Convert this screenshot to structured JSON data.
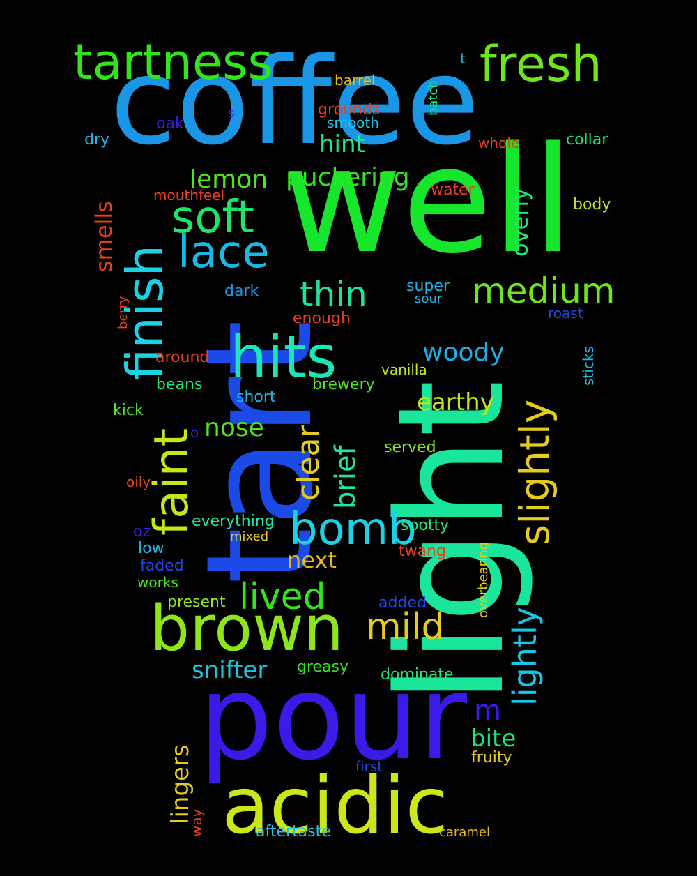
{
  "words": [
    {
      "text": "coffee",
      "color": "#1a96e6",
      "vertical": false
    },
    {
      "text": "well",
      "color": "#16e62c",
      "vertical": false
    },
    {
      "text": "light",
      "color": "#1ae69b",
      "vertical": true
    },
    {
      "text": "tart",
      "color": "#1c4ae6",
      "vertical": true
    },
    {
      "text": "pour",
      "color": "#3a1ae6",
      "vertical": false
    },
    {
      "text": "acidic",
      "color": "#cce61a",
      "vertical": false
    },
    {
      "text": "brown",
      "color": "#8ee61a",
      "vertical": false
    },
    {
      "text": "tartness",
      "color": "#2ee61a",
      "vertical": false
    },
    {
      "text": "fresh",
      "color": "#6ee61a",
      "vertical": false
    },
    {
      "text": "finish",
      "color": "#1ad2e6",
      "vertical": true
    },
    {
      "text": "faint",
      "color": "#c6e61a",
      "vertical": true
    },
    {
      "text": "hits",
      "color": "#1ae6b8",
      "vertical": false
    },
    {
      "text": "soft",
      "color": "#1ae668",
      "vertical": false
    },
    {
      "text": "lace",
      "color": "#1ab8e6",
      "vertical": false
    },
    {
      "text": "slightly",
      "color": "#e6cc1a",
      "vertical": true
    },
    {
      "text": "bomb",
      "color": "#1ad2e6",
      "vertical": false
    },
    {
      "text": "medium",
      "color": "#6ee61a",
      "vertical": false
    },
    {
      "text": "thin",
      "color": "#1ae69b",
      "vertical": false
    },
    {
      "text": "lightly",
      "color": "#1ac6e6",
      "vertical": true
    },
    {
      "text": "mild",
      "color": "#e6cc1a",
      "vertical": false
    },
    {
      "text": "lived",
      "color": "#2ee61a",
      "vertical": false
    },
    {
      "text": "woody",
      "color": "#1aaee6",
      "vertical": false
    },
    {
      "text": "earthy",
      "color": "#b8e61a",
      "vertical": false
    },
    {
      "text": "clear",
      "color": "#e6cc1a",
      "vertical": true
    },
    {
      "text": "brief",
      "color": "#1ae6a8",
      "vertical": true
    },
    {
      "text": "nose",
      "color": "#4ee61a",
      "vertical": false
    },
    {
      "text": "hint",
      "color": "#1ae68a",
      "vertical": false
    },
    {
      "text": "lemon",
      "color": "#4ee61a",
      "vertical": false
    },
    {
      "text": "puckering",
      "color": "#2ee61a",
      "vertical": false
    },
    {
      "text": "overly",
      "color": "#1ae67a",
      "vertical": true
    },
    {
      "text": "smells",
      "color": "#e6401a",
      "vertical": true
    },
    {
      "text": "snifter",
      "color": "#1ac6e6",
      "vertical": false
    },
    {
      "text": "lingers",
      "color": "#e6cc1a",
      "vertical": true
    },
    {
      "text": "bite",
      "color": "#1ae67a",
      "vertical": false
    },
    {
      "text": "m",
      "color": "#3a1ae6",
      "vertical": false
    },
    {
      "text": "next",
      "color": "#e6b81a",
      "vertical": false
    },
    {
      "text": "fruity",
      "color": "#e6cc1a",
      "vertical": false
    },
    {
      "text": "barrel",
      "color": "#e6b81a",
      "vertical": false
    },
    {
      "text": "grounds",
      "color": "#e6401a",
      "vertical": false
    },
    {
      "text": "smooth",
      "color": "#1ac6e6",
      "vertical": false
    },
    {
      "text": "batch",
      "color": "#1ae67a",
      "vertical": true
    },
    {
      "text": "t",
      "color": "#1ab8e6",
      "vertical": false
    },
    {
      "text": "s",
      "color": "#3a1ae6",
      "vertical": false
    },
    {
      "text": "oak",
      "color": "#3a1ae6",
      "vertical": false
    },
    {
      "text": "dry",
      "color": "#1ab8e6",
      "vertical": false
    },
    {
      "text": "whole",
      "color": "#e6401a",
      "vertical": false
    },
    {
      "text": "collar",
      "color": "#1ae67a",
      "vertical": false
    },
    {
      "text": "mouthfeel",
      "color": "#e6401a",
      "vertical": false
    },
    {
      "text": "water",
      "color": "#e6401a",
      "vertical": false
    },
    {
      "text": "body",
      "color": "#b8e61a",
      "vertical": false
    },
    {
      "text": "dark",
      "color": "#1a96e6",
      "vertical": false
    },
    {
      "text": "super",
      "color": "#1ab8e6",
      "vertical": false
    },
    {
      "text": "sour",
      "color": "#1ab8e6",
      "vertical": false
    },
    {
      "text": "berry",
      "color": "#e6401a",
      "vertical": true
    },
    {
      "text": "enough",
      "color": "#e6401a",
      "vertical": false
    },
    {
      "text": "roast",
      "color": "#1c4ae6",
      "vertical": false
    },
    {
      "text": "sticks",
      "color": "#1ab8e6",
      "vertical": true
    },
    {
      "text": "around",
      "color": "#e6401a",
      "vertical": false
    },
    {
      "text": "vanilla",
      "color": "#cce61a",
      "vertical": false
    },
    {
      "text": "beans",
      "color": "#1ae67a",
      "vertical": false
    },
    {
      "text": "brewery",
      "color": "#4ee61a",
      "vertical": false
    },
    {
      "text": "short",
      "color": "#1ab8e6",
      "vertical": false
    },
    {
      "text": "kick",
      "color": "#4ee61a",
      "vertical": false
    },
    {
      "text": "o",
      "color": "#3a1ae6",
      "vertical": false
    },
    {
      "text": "served",
      "color": "#8ee61a",
      "vertical": false
    },
    {
      "text": "oily",
      "color": "#e6401a",
      "vertical": false
    },
    {
      "text": "everything",
      "color": "#1ae6a8",
      "vertical": false
    },
    {
      "text": "spotty",
      "color": "#1ae67a",
      "vertical": false
    },
    {
      "text": "oz",
      "color": "#3a1ae6",
      "vertical": false
    },
    {
      "text": "mixed",
      "color": "#e6cc1a",
      "vertical": false
    },
    {
      "text": "low",
      "color": "#1ab8e6",
      "vertical": false
    },
    {
      "text": "overbearing",
      "color": "#e6cc1a",
      "vertical": true
    },
    {
      "text": "twang",
      "color": "#e6401a",
      "vertical": false
    },
    {
      "text": "faded",
      "color": "#1c4ae6",
      "vertical": false
    },
    {
      "text": "works",
      "color": "#4ee61a",
      "vertical": false
    },
    {
      "text": "present",
      "color": "#8ee61a",
      "vertical": false
    },
    {
      "text": "added",
      "color": "#1c4ae6",
      "vertical": false
    },
    {
      "text": "greasy",
      "color": "#2ee61a",
      "vertical": false
    },
    {
      "text": "dominate",
      "color": "#1ae67a",
      "vertical": false
    },
    {
      "text": "first",
      "color": "#1c4ae6",
      "vertical": false
    },
    {
      "text": "way",
      "color": "#e6401a",
      "vertical": true
    },
    {
      "text": "aftertaste",
      "color": "#1ac6e6",
      "vertical": false
    },
    {
      "text": "caramel",
      "color": "#e6b81a",
      "vertical": false
    }
  ]
}
